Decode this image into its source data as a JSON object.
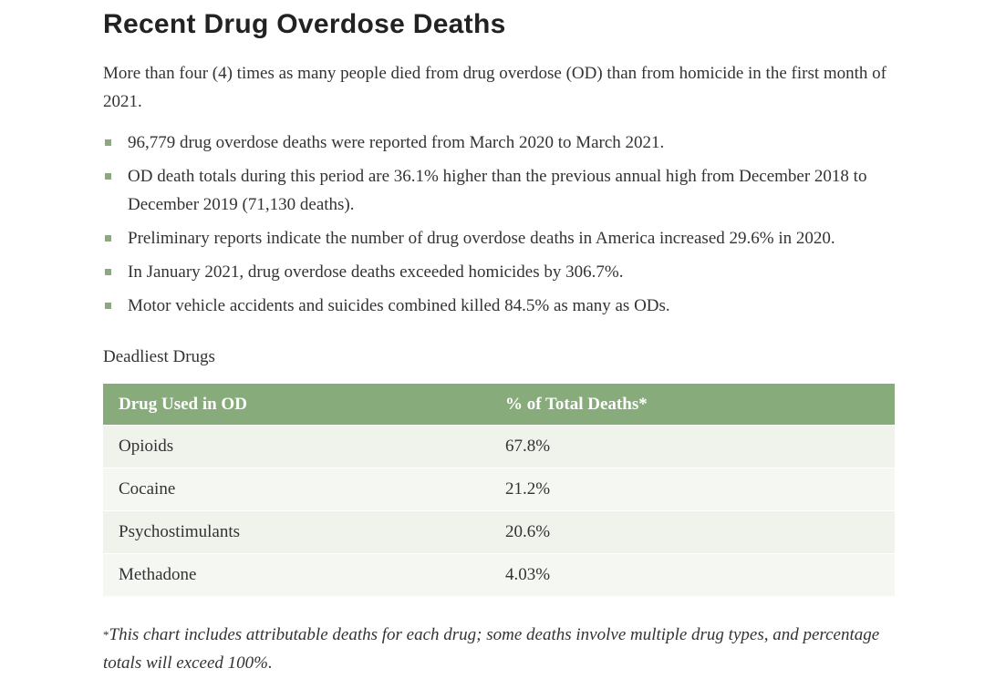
{
  "header": {
    "title": "Recent Drug Overdose Deaths"
  },
  "intro": "More than four (4) times as many people died from drug overdose (OD) than from homicide in the first month of 2021.",
  "bullets": [
    "96,779 drug overdose deaths were reported from March 2020 to March 2021.",
    "OD death totals during this period are 36.1% higher than the previous annual high from December 2018 to December 2019 (71,130 deaths).",
    "Preliminary reports indicate the number of drug overdose deaths in America increased 29.6% in 2020.",
    "In January 2021, drug overdose deaths exceeded homicides by 306.7%.",
    "Motor vehicle accidents and suicides combined killed 84.5% as many as ODs."
  ],
  "table": {
    "caption": "Deadliest Drugs",
    "columns": [
      "Drug Used in OD",
      "% of Total Deaths*"
    ],
    "rows": [
      [
        "Opioids",
        "67.8%"
      ],
      [
        "Cocaine",
        "21.2%"
      ],
      [
        "Psychostimulants",
        "20.6%"
      ],
      [
        "Methadone",
        "4.03%"
      ]
    ]
  },
  "footnote": {
    "marker": "*",
    "text": "This chart includes attributable deaths for each drug; some deaths involve multiple drug types, and percentage totals will exceed 100%."
  }
}
